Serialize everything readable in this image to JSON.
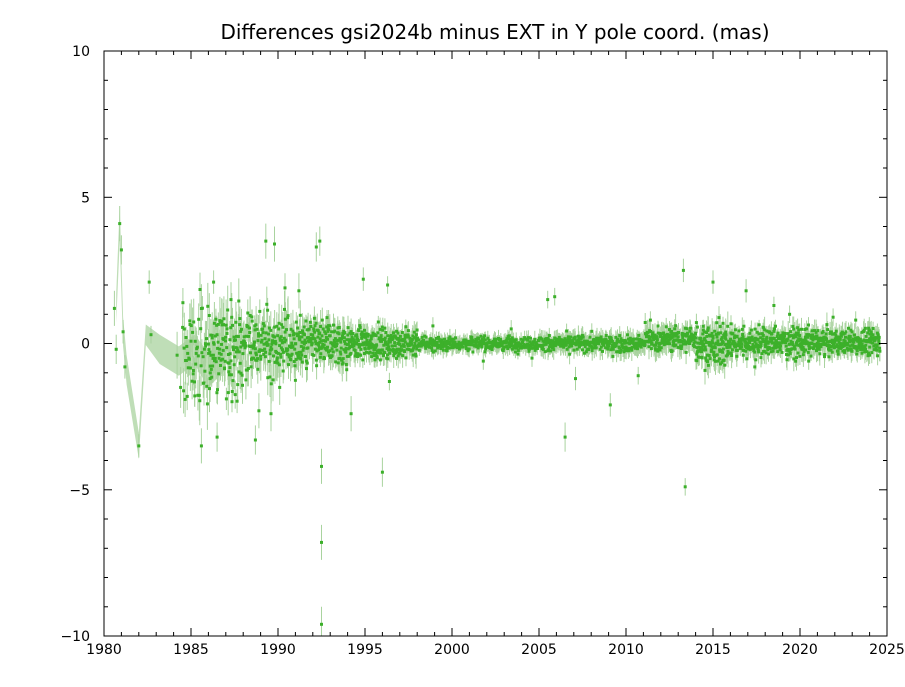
{
  "chart_data": {
    "type": "scatter",
    "title": "Differences gsi2024b minus EXT in Y pole coord. (mas)",
    "xlabel": "",
    "ylabel": "",
    "xlim": [
      1980,
      2025
    ],
    "ylim": [
      -10,
      10
    ],
    "x_ticks": [
      1980,
      1985,
      1990,
      1995,
      2000,
      2005,
      2010,
      2015,
      2020,
      2025
    ],
    "y_ticks": [
      -10,
      -5,
      0,
      5,
      10
    ],
    "x_tick_labels": [
      "1980",
      "1985",
      "1990",
      "1995",
      "2000",
      "2005",
      "2010",
      "2015",
      "2020",
      "2025"
    ],
    "y_tick_labels": [
      "−10",
      "−5",
      "0",
      "5",
      "10"
    ],
    "grid": false,
    "colors": {
      "points": "#3cb02a",
      "error_band": "#a9d39f"
    },
    "uncertainty_band": [
      {
        "x": 1980.7,
        "y": 1.2,
        "err": 0.5
      },
      {
        "x": 1980.9,
        "y": 4.1,
        "err": 0.6
      },
      {
        "x": 1981.1,
        "y": 0.4,
        "err": 0.5
      },
      {
        "x": 1981.3,
        "y": -0.9,
        "err": 0.5
      },
      {
        "x": 1982.0,
        "y": -3.5,
        "err": 0.45
      },
      {
        "x": 1982.4,
        "y": 0.3,
        "err": 0.35
      },
      {
        "x": 1983.2,
        "y": -0.2,
        "err": 0.5
      },
      {
        "x": 1984.3,
        "y": -0.6,
        "err": 0.5
      },
      {
        "x": 1985.2,
        "y": -0.2,
        "err": 0.5
      },
      {
        "x": 1986.0,
        "y": -0.9,
        "err": 0.6
      },
      {
        "x": 1987.0,
        "y": -0.4,
        "err": 0.5
      }
    ],
    "series": [
      {
        "name": "",
        "points": [
          {
            "x": 1980.6,
            "y": 1.2,
            "err": 0.6
          },
          {
            "x": 1980.7,
            "y": -0.2,
            "err": 0.5
          },
          {
            "x": 1980.9,
            "y": 4.1,
            "err": 0.6
          },
          {
            "x": 1981.0,
            "y": 3.2,
            "err": 0.5
          },
          {
            "x": 1981.1,
            "y": 0.4,
            "err": 0.4
          },
          {
            "x": 1981.2,
            "y": -0.8,
            "err": 0.4
          },
          {
            "x": 1982.0,
            "y": -3.5,
            "err": 0.4
          },
          {
            "x": 1982.6,
            "y": 2.1,
            "err": 0.4
          },
          {
            "x": 1982.7,
            "y": 0.3,
            "err": 0.3
          },
          {
            "x": 1984.2,
            "y": -0.4,
            "err": 0.8
          },
          {
            "x": 1984.4,
            "y": -1.5,
            "err": 0.7
          },
          {
            "x": 1985.6,
            "y": -3.5,
            "err": 0.6
          },
          {
            "x": 1986.1,
            "y": -1.2,
            "err": 0.8
          },
          {
            "x": 1986.3,
            "y": 2.1,
            "err": 0.4
          },
          {
            "x": 1986.5,
            "y": -3.2,
            "err": 0.5
          },
          {
            "x": 1987.3,
            "y": 1.5,
            "err": 0.6
          },
          {
            "x": 1988.7,
            "y": -3.3,
            "err": 0.5
          },
          {
            "x": 1988.9,
            "y": -2.3,
            "err": 0.6
          },
          {
            "x": 1989.3,
            "y": 3.5,
            "err": 0.6
          },
          {
            "x": 1989.6,
            "y": -2.4,
            "err": 0.6
          },
          {
            "x": 1989.8,
            "y": 3.4,
            "err": 0.6
          },
          {
            "x": 1990.1,
            "y": -1.5,
            "err": 0.6
          },
          {
            "x": 1990.4,
            "y": 1.9,
            "err": 0.5
          },
          {
            "x": 1991.2,
            "y": 1.8,
            "err": 0.6
          },
          {
            "x": 1992.2,
            "y": 3.3,
            "err": 0.5
          },
          {
            "x": 1992.4,
            "y": 3.5,
            "err": 0.5
          },
          {
            "x": 1992.5,
            "y": -4.2,
            "err": 0.6
          },
          {
            "x": 1992.5,
            "y": -6.8,
            "err": 0.6
          },
          {
            "x": 1992.5,
            "y": -9.6,
            "err": 0.6
          },
          {
            "x": 1994.2,
            "y": -2.4,
            "err": 0.6
          },
          {
            "x": 1994.9,
            "y": 2.2,
            "err": 0.4
          },
          {
            "x": 1996.0,
            "y": -4.4,
            "err": 0.5
          },
          {
            "x": 1996.3,
            "y": 2.0,
            "err": 0.3
          },
          {
            "x": 1996.4,
            "y": -1.3,
            "err": 0.3
          },
          {
            "x": 1998.9,
            "y": 0.6,
            "err": 0.3
          },
          {
            "x": 2001.8,
            "y": -0.6,
            "err": 0.3
          },
          {
            "x": 2003.4,
            "y": 0.5,
            "err": 0.3
          },
          {
            "x": 2004.6,
            "y": -0.5,
            "err": 0.3
          },
          {
            "x": 2005.5,
            "y": 1.5,
            "err": 0.3
          },
          {
            "x": 2005.9,
            "y": 1.6,
            "err": 0.3
          },
          {
            "x": 2006.5,
            "y": -3.2,
            "err": 0.5
          },
          {
            "x": 2007.1,
            "y": -1.2,
            "err": 0.4
          },
          {
            "x": 2009.1,
            "y": -2.1,
            "err": 0.4
          },
          {
            "x": 2010.7,
            "y": -1.1,
            "err": 0.3
          },
          {
            "x": 2011.4,
            "y": 0.8,
            "err": 0.3
          },
          {
            "x": 2013.3,
            "y": 2.5,
            "err": 0.4
          },
          {
            "x": 2013.4,
            "y": -4.9,
            "err": 0.3
          },
          {
            "x": 2015.0,
            "y": 2.1,
            "err": 0.4
          },
          {
            "x": 2015.3,
            "y": -0.6,
            "err": 0.4
          },
          {
            "x": 2016.9,
            "y": 1.8,
            "err": 0.4
          },
          {
            "x": 2017.4,
            "y": -0.8,
            "err": 0.3
          },
          {
            "x": 2018.5,
            "y": 1.3,
            "err": 0.3
          },
          {
            "x": 2019.4,
            "y": 1.0,
            "err": 0.3
          },
          {
            "x": 2020.5,
            "y": -0.6,
            "err": 0.3
          },
          {
            "x": 2021.9,
            "y": 0.9,
            "err": 0.3
          },
          {
            "x": 2023.2,
            "y": 0.8,
            "err": 0.3
          },
          {
            "x": 2024.0,
            "y": -0.4,
            "err": 0.3
          }
        ],
        "dense_segments": [
          {
            "x_start": 1984.5,
            "x_end": 1986.0,
            "spread": 0.9,
            "err": 0.6,
            "count": 55,
            "offset": -0.4
          },
          {
            "x_start": 1986.0,
            "x_end": 1988.0,
            "spread": 0.8,
            "err": 0.6,
            "count": 110,
            "offset": -0.2
          },
          {
            "x_start": 1988.0,
            "x_end": 1991.0,
            "spread": 0.55,
            "err": 0.5,
            "count": 170,
            "offset": 0.0
          },
          {
            "x_start": 1991.0,
            "x_end": 1994.0,
            "spread": 0.4,
            "err": 0.4,
            "count": 200,
            "offset": 0.0
          },
          {
            "x_start": 1994.0,
            "x_end": 1998.0,
            "spread": 0.25,
            "err": 0.3,
            "count": 260,
            "offset": 0.0
          },
          {
            "x_start": 1998.0,
            "x_end": 2005.0,
            "spread": 0.12,
            "err": 0.2,
            "count": 360,
            "offset": 0.0
          },
          {
            "x_start": 2005.0,
            "x_end": 2011.0,
            "spread": 0.14,
            "err": 0.25,
            "count": 320,
            "offset": 0.0
          },
          {
            "x_start": 2011.0,
            "x_end": 2014.0,
            "spread": 0.2,
            "err": 0.3,
            "count": 180,
            "offset": 0.15
          },
          {
            "x_start": 2014.0,
            "x_end": 2016.0,
            "spread": 0.35,
            "err": 0.35,
            "count": 150,
            "offset": 0.0
          },
          {
            "x_start": 2016.0,
            "x_end": 2020.0,
            "spread": 0.25,
            "err": 0.3,
            "count": 260,
            "offset": 0.05
          },
          {
            "x_start": 2020.0,
            "x_end": 2024.6,
            "spread": 0.22,
            "err": 0.3,
            "count": 300,
            "offset": 0.05
          }
        ]
      }
    ]
  }
}
